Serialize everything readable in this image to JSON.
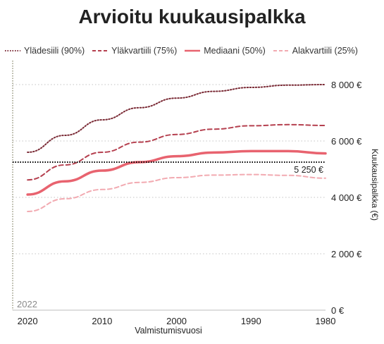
{
  "chart_data": {
    "type": "line",
    "title": "Arvioitu kuukausipalkka",
    "xlabel": "Valmistumisvuosi",
    "ylabel": "Kuukausipalkka (€)",
    "x": [
      2020,
      2015,
      2010,
      2005,
      2000,
      1995,
      1990,
      1985,
      1980
    ],
    "x_ticks": [
      2020,
      2010,
      2000,
      1990,
      1980
    ],
    "x_tick_labels": [
      "2020",
      "2010",
      "2000",
      "1990",
      "1980"
    ],
    "xlim": [
      2022,
      1980
    ],
    "ylim": [
      0,
      8000
    ],
    "y_ticks": [
      0,
      2000,
      4000,
      6000,
      8000
    ],
    "y_tick_labels": [
      "0 €",
      "2 000 €",
      "4 000 €",
      "6 000 €",
      "8 000 €"
    ],
    "series": [
      {
        "name": "Ylädesiili (90%)",
        "style": "dotted",
        "color": "#7a2a35",
        "width": 2,
        "values": [
          5600,
          6200,
          6750,
          7180,
          7520,
          7760,
          7900,
          7980,
          8000
        ]
      },
      {
        "name": "Yläkvartiili (75%)",
        "style": "dashed",
        "color": "#b5404f",
        "width": 2,
        "values": [
          4620,
          5150,
          5600,
          5960,
          6230,
          6420,
          6540,
          6580,
          6550
        ]
      },
      {
        "name": "Mediaani (50%)",
        "style": "solid",
        "color": "#e8636f",
        "width": 3.5,
        "values": [
          4100,
          4570,
          4950,
          5250,
          5460,
          5590,
          5640,
          5640,
          5560
        ]
      },
      {
        "name": "Alakvartiili (25%)",
        "style": "dashed",
        "color": "#f2aab1",
        "width": 2,
        "values": [
          3500,
          3950,
          4280,
          4530,
          4700,
          4790,
          4810,
          4780,
          4680
        ]
      }
    ],
    "reference_line": {
      "value": 5250,
      "label": "5 250 €",
      "style": "dotted",
      "color": "#000000"
    },
    "current_year_marker": {
      "value": 2022,
      "label": "2022"
    },
    "grid": true,
    "legend_position": "top"
  }
}
